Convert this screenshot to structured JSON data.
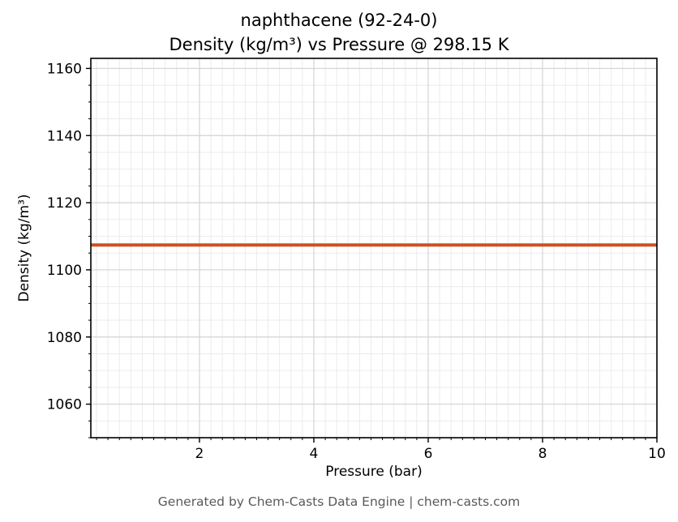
{
  "chart_data": {
    "type": "line",
    "title_line1": "naphthacene (92-24-0)",
    "title_line2": "Density (kg/m³) vs Pressure @ 298.15 K",
    "compound": "naphthacene",
    "cas_number": "92-24-0",
    "temperature": "298.15 K",
    "xlabel": "Pressure (bar)",
    "ylabel": "Density (kg/m³)",
    "xlim": [
      0.1,
      10
    ],
    "ylim": [
      1050,
      1163
    ],
    "x_ticks": [
      2,
      4,
      6,
      8,
      10
    ],
    "y_ticks": [
      1060,
      1080,
      1100,
      1120,
      1140,
      1160
    ],
    "series": [
      {
        "name": "density-vs-pressure",
        "x": [
          0.1,
          10
        ],
        "y": [
          1107.4,
          1107.4
        ],
        "color": "#d0501e",
        "linewidth": 4
      }
    ],
    "grid": {
      "on": true,
      "major_color": "#d4d4d4",
      "minor_color": "#ebebeb",
      "x_minor_step": 0.2,
      "y_minor_step": 5
    },
    "frame_color": "#000000",
    "legend": "none",
    "footer": "Generated by Chem-Casts Data Engine | chem-casts.com"
  }
}
